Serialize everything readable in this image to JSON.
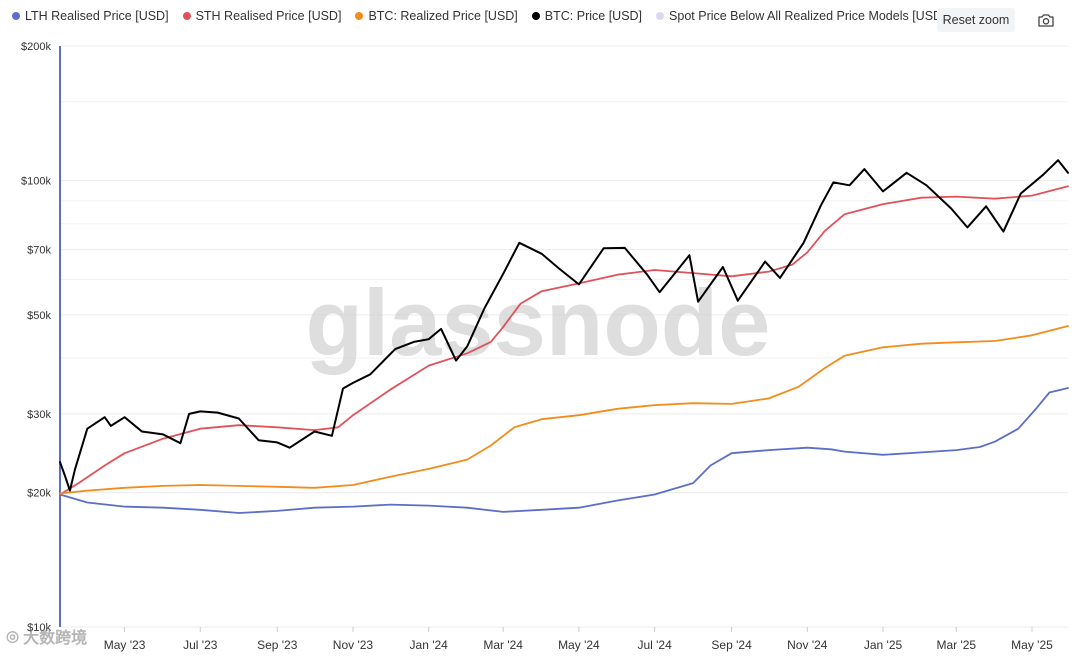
{
  "legend": [
    {
      "label": "LTH Realised Price [USD]",
      "color": "#5b6fc7"
    },
    {
      "label": "STH Realised Price [USD]",
      "color": "#e0525a"
    },
    {
      "label": "BTC: Realized Price [USD]",
      "color": "#f28c1c"
    },
    {
      "label": "BTC: Price [USD]",
      "color": "#000000"
    },
    {
      "label": "Spot Price Below All Realized Price Models [USD]",
      "color": "#ddd6f3"
    }
  ],
  "toolbar": {
    "reset_zoom_label": "Reset zoom",
    "camera_icon": "camera-icon"
  },
  "watermark": {
    "text": "glassnode",
    "bottom_text": "大数跨境"
  },
  "chart_data": {
    "type": "line",
    "y_scale": "log",
    "ylim": [
      10000,
      200000
    ],
    "y_ticks": [
      {
        "value": 200000,
        "label": "$200k"
      },
      {
        "value": 100000,
        "label": "$100k"
      },
      {
        "value": 70000,
        "label": "$70k"
      },
      {
        "value": 50000,
        "label": "$50k"
      },
      {
        "value": 30000,
        "label": "$30k"
      },
      {
        "value": 20000,
        "label": "$20k"
      },
      {
        "value": 10000,
        "label": "$10k"
      }
    ],
    "x_start": "2023-03-10",
    "x_end": "2025-05-30",
    "x_ticks": [
      {
        "date": "2023-05-01",
        "label": "May '23"
      },
      {
        "date": "2023-07-01",
        "label": "Jul '23"
      },
      {
        "date": "2023-09-01",
        "label": "Sep '23"
      },
      {
        "date": "2023-11-01",
        "label": "Nov '23"
      },
      {
        "date": "2024-01-01",
        "label": "Jan '24"
      },
      {
        "date": "2024-03-01",
        "label": "Mar '24"
      },
      {
        "date": "2024-05-01",
        "label": "May '24"
      },
      {
        "date": "2024-07-01",
        "label": "Jul '24"
      },
      {
        "date": "2024-09-01",
        "label": "Sep '24"
      },
      {
        "date": "2024-11-01",
        "label": "Nov '24"
      },
      {
        "date": "2025-01-01",
        "label": "Jan '25"
      },
      {
        "date": "2025-03-01",
        "label": "Mar '25"
      },
      {
        "date": "2025-05-01",
        "label": "May '25"
      }
    ],
    "series": [
      {
        "name": "LTH Realised Price [USD]",
        "color": "#5b6fc7",
        "points": [
          [
            "2023-03-10",
            19800
          ],
          [
            "2023-04-01",
            19000
          ],
          [
            "2023-05-01",
            18600
          ],
          [
            "2023-06-01",
            18500
          ],
          [
            "2023-07-01",
            18300
          ],
          [
            "2023-08-01",
            18000
          ],
          [
            "2023-09-01",
            18200
          ],
          [
            "2023-10-01",
            18500
          ],
          [
            "2023-11-01",
            18600
          ],
          [
            "2023-12-01",
            18800
          ],
          [
            "2024-01-01",
            18700
          ],
          [
            "2024-02-01",
            18500
          ],
          [
            "2024-03-01",
            18100
          ],
          [
            "2024-04-01",
            18300
          ],
          [
            "2024-05-01",
            18500
          ],
          [
            "2024-06-01",
            19200
          ],
          [
            "2024-07-01",
            19800
          ],
          [
            "2024-08-01",
            21000
          ],
          [
            "2024-08-15",
            23000
          ],
          [
            "2024-09-01",
            24500
          ],
          [
            "2024-10-01",
            24900
          ],
          [
            "2024-11-01",
            25200
          ],
          [
            "2024-11-20",
            25000
          ],
          [
            "2024-12-01",
            24700
          ],
          [
            "2025-01-01",
            24300
          ],
          [
            "2025-02-01",
            24600
          ],
          [
            "2025-03-01",
            24900
          ],
          [
            "2025-03-20",
            25300
          ],
          [
            "2025-04-01",
            26000
          ],
          [
            "2025-04-20",
            27800
          ],
          [
            "2025-05-05",
            31000
          ],
          [
            "2025-05-15",
            33500
          ],
          [
            "2025-05-30",
            34300
          ]
        ]
      },
      {
        "name": "STH Realised Price [USD]",
        "color": "#e0525a",
        "points": [
          [
            "2023-03-10",
            19800
          ],
          [
            "2023-03-25",
            21000
          ],
          [
            "2023-04-15",
            23000
          ],
          [
            "2023-05-01",
            24500
          ],
          [
            "2023-06-01",
            26400
          ],
          [
            "2023-07-01",
            27800
          ],
          [
            "2023-08-01",
            28300
          ],
          [
            "2023-09-01",
            28000
          ],
          [
            "2023-10-01",
            27600
          ],
          [
            "2023-10-20",
            28000
          ],
          [
            "2023-11-01",
            29800
          ],
          [
            "2023-12-01",
            34000
          ],
          [
            "2024-01-01",
            38500
          ],
          [
            "2024-02-01",
            41000
          ],
          [
            "2024-02-20",
            43500
          ],
          [
            "2024-03-01",
            47000
          ],
          [
            "2024-03-15",
            53000
          ],
          [
            "2024-04-01",
            56500
          ],
          [
            "2024-05-01",
            58800
          ],
          [
            "2024-06-01",
            61500
          ],
          [
            "2024-07-01",
            63000
          ],
          [
            "2024-08-01",
            62000
          ],
          [
            "2024-09-01",
            61000
          ],
          [
            "2024-10-01",
            62500
          ],
          [
            "2024-10-20",
            64800
          ],
          [
            "2024-11-01",
            69000
          ],
          [
            "2024-11-15",
            77000
          ],
          [
            "2024-12-01",
            84000
          ],
          [
            "2025-01-01",
            88500
          ],
          [
            "2025-02-01",
            91500
          ],
          [
            "2025-03-01",
            92000
          ],
          [
            "2025-04-01",
            91000
          ],
          [
            "2025-05-01",
            92500
          ],
          [
            "2025-05-30",
            97000
          ]
        ]
      },
      {
        "name": "BTC: Realized Price [USD]",
        "color": "#f28c1c",
        "points": [
          [
            "2023-03-10",
            19900
          ],
          [
            "2023-04-01",
            20200
          ],
          [
            "2023-05-01",
            20500
          ],
          [
            "2023-06-01",
            20700
          ],
          [
            "2023-07-01",
            20800
          ],
          [
            "2023-08-01",
            20700
          ],
          [
            "2023-09-01",
            20600
          ],
          [
            "2023-10-01",
            20500
          ],
          [
            "2023-11-01",
            20800
          ],
          [
            "2023-12-01",
            21700
          ],
          [
            "2024-01-01",
            22600
          ],
          [
            "2024-02-01",
            23700
          ],
          [
            "2024-02-20",
            25500
          ],
          [
            "2024-03-10",
            28000
          ],
          [
            "2024-04-01",
            29200
          ],
          [
            "2024-05-01",
            29800
          ],
          [
            "2024-06-01",
            30800
          ],
          [
            "2024-07-01",
            31400
          ],
          [
            "2024-08-01",
            31700
          ],
          [
            "2024-09-01",
            31600
          ],
          [
            "2024-10-01",
            32500
          ],
          [
            "2024-10-25",
            34500
          ],
          [
            "2024-11-15",
            38000
          ],
          [
            "2024-12-01",
            40500
          ],
          [
            "2025-01-01",
            42300
          ],
          [
            "2025-02-01",
            43100
          ],
          [
            "2025-03-01",
            43400
          ],
          [
            "2025-04-01",
            43700
          ],
          [
            "2025-05-01",
            45000
          ],
          [
            "2025-05-30",
            47200
          ]
        ]
      },
      {
        "name": "BTC: Price [USD]",
        "color": "#000000",
        "points": [
          [
            "2023-03-10",
            23400
          ],
          [
            "2023-03-14",
            21800
          ],
          [
            "2023-03-18",
            20200
          ],
          [
            "2023-03-22",
            22500
          ],
          [
            "2023-04-01",
            27800
          ],
          [
            "2023-04-15",
            29500
          ],
          [
            "2023-04-20",
            28200
          ],
          [
            "2023-05-01",
            29500
          ],
          [
            "2023-05-15",
            27400
          ],
          [
            "2023-06-01",
            27000
          ],
          [
            "2023-06-15",
            25800
          ],
          [
            "2023-06-22",
            30000
          ],
          [
            "2023-07-01",
            30400
          ],
          [
            "2023-07-15",
            30200
          ],
          [
            "2023-08-01",
            29300
          ],
          [
            "2023-08-17",
            26200
          ],
          [
            "2023-09-01",
            25900
          ],
          [
            "2023-09-11",
            25200
          ],
          [
            "2023-10-01",
            27400
          ],
          [
            "2023-10-15",
            26800
          ],
          [
            "2023-10-24",
            34200
          ],
          [
            "2023-11-01",
            35200
          ],
          [
            "2023-11-15",
            36800
          ],
          [
            "2023-12-05",
            41900
          ],
          [
            "2023-12-20",
            43500
          ],
          [
            "2024-01-01",
            44100
          ],
          [
            "2024-01-11",
            46500
          ],
          [
            "2024-01-23",
            39500
          ],
          [
            "2024-02-01",
            42500
          ],
          [
            "2024-02-15",
            51800
          ],
          [
            "2024-03-01",
            61800
          ],
          [
            "2024-03-14",
            72500
          ],
          [
            "2024-04-01",
            68500
          ],
          [
            "2024-04-15",
            63500
          ],
          [
            "2024-05-01",
            58500
          ],
          [
            "2024-05-21",
            70500
          ],
          [
            "2024-06-07",
            70600
          ],
          [
            "2024-06-25",
            61500
          ],
          [
            "2024-07-05",
            56200
          ],
          [
            "2024-07-29",
            68000
          ],
          [
            "2024-08-05",
            53500
          ],
          [
            "2024-08-25",
            64000
          ],
          [
            "2024-09-06",
            53800
          ],
          [
            "2024-09-28",
            65800
          ],
          [
            "2024-10-10",
            60500
          ],
          [
            "2024-10-29",
            72500
          ],
          [
            "2024-11-12",
            88000
          ],
          [
            "2024-11-22",
            99000
          ],
          [
            "2024-12-05",
            97500
          ],
          [
            "2024-12-17",
            106000
          ],
          [
            "2025-01-01",
            94500
          ],
          [
            "2025-01-20",
            104000
          ],
          [
            "2025-02-05",
            97500
          ],
          [
            "2025-02-25",
            86500
          ],
          [
            "2025-03-10",
            78500
          ],
          [
            "2025-03-25",
            87500
          ],
          [
            "2025-04-08",
            76800
          ],
          [
            "2025-04-22",
            93500
          ],
          [
            "2025-05-10",
            103000
          ],
          [
            "2025-05-22",
            111000
          ],
          [
            "2025-05-30",
            104000
          ]
        ]
      },
      {
        "name": "Spot Price Below All Realized Price Models [USD]",
        "color": "#ddd6f3",
        "points": []
      }
    ]
  }
}
